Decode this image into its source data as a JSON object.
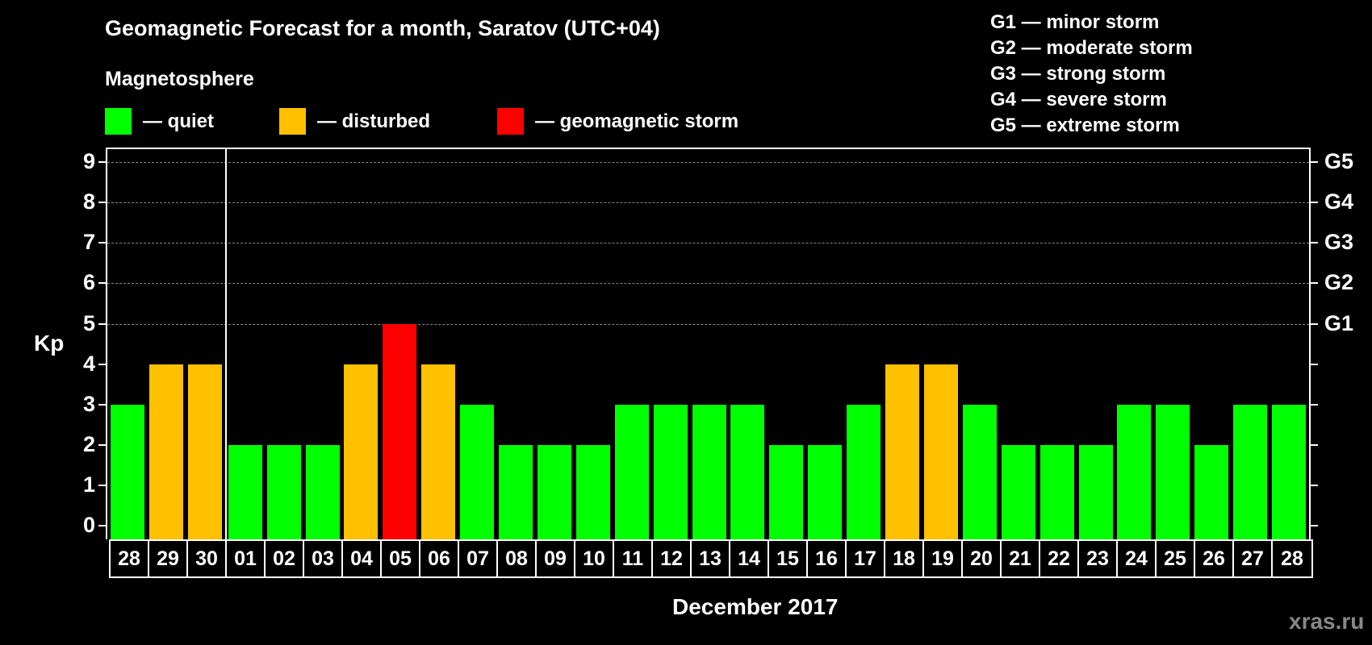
{
  "header": {
    "title": "Geomagnetic Forecast for a month, Saratov (UTC+04)",
    "subtitle": "Magnetosphere"
  },
  "legend": [
    {
      "label": "— quiet",
      "color": "#00ff00"
    },
    {
      "label": "— disturbed",
      "color": "#ffc000"
    },
    {
      "label": "— geomagnetic storm",
      "color": "#ff0000"
    }
  ],
  "g_legend": [
    "G1 — minor storm",
    "G2 — moderate storm",
    "G3 — strong storm",
    "G4 — severe storm",
    "G5 — extreme storm"
  ],
  "axes": {
    "ylabel": "Kp",
    "xlabel": "December 2017",
    "yticks": [
      "0",
      "1",
      "2",
      "3",
      "4",
      "5",
      "6",
      "7",
      "8",
      "9"
    ],
    "gticks": [
      {
        "kp": 5,
        "label": "G1"
      },
      {
        "kp": 6,
        "label": "G2"
      },
      {
        "kp": 7,
        "label": "G3"
      },
      {
        "kp": 8,
        "label": "G4"
      },
      {
        "kp": 9,
        "label": "G5"
      }
    ]
  },
  "watermark": "xras.ru",
  "chart_data": {
    "type": "bar",
    "title": "Geomagnetic Forecast for a month, Saratov (UTC+04)",
    "subtitle": "Magnetosphere",
    "xlabel": "December 2017",
    "ylabel": "Kp",
    "ylim": [
      0,
      9
    ],
    "grid": "dashed horizontal lines at Kp 5-9",
    "secondary_yaxis": {
      "5": "G1",
      "6": "G2",
      "7": "G3",
      "8": "G4",
      "9": "G5"
    },
    "legend_position": "top",
    "categories": [
      "28",
      "29",
      "30",
      "01",
      "02",
      "03",
      "04",
      "05",
      "06",
      "07",
      "08",
      "09",
      "10",
      "11",
      "12",
      "13",
      "14",
      "15",
      "16",
      "17",
      "18",
      "19",
      "20",
      "21",
      "22",
      "23",
      "24",
      "25",
      "26",
      "27",
      "28"
    ],
    "values": [
      3,
      4,
      4,
      2,
      2,
      2,
      4,
      5,
      4,
      3,
      2,
      2,
      2,
      3,
      3,
      3,
      3,
      2,
      2,
      3,
      4,
      4,
      3,
      2,
      2,
      2,
      3,
      3,
      2,
      3,
      3
    ],
    "status": [
      "quiet",
      "disturbed",
      "disturbed",
      "quiet",
      "quiet",
      "quiet",
      "disturbed",
      "storm",
      "disturbed",
      "quiet",
      "quiet",
      "quiet",
      "quiet",
      "quiet",
      "quiet",
      "quiet",
      "quiet",
      "quiet",
      "quiet",
      "quiet",
      "disturbed",
      "disturbed",
      "quiet",
      "quiet",
      "quiet",
      "quiet",
      "quiet",
      "quiet",
      "quiet",
      "quiet",
      "quiet"
    ],
    "colors": {
      "quiet": "#00ff00",
      "disturbed": "#ffc000",
      "storm": "#ff0000"
    },
    "month_separator_after_index": 2
  }
}
